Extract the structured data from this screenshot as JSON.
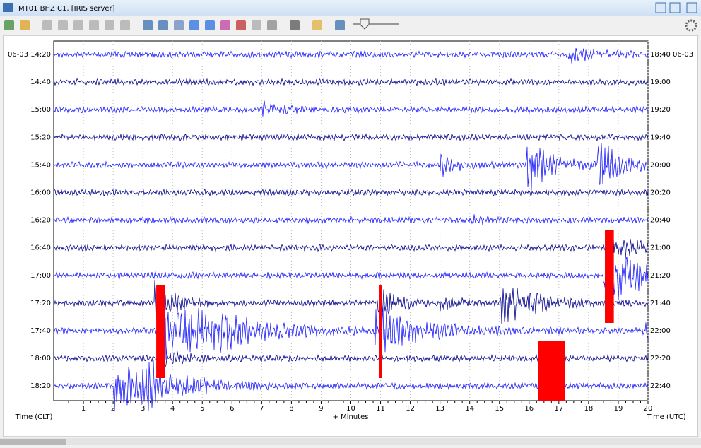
{
  "window": {
    "title": "MT01 BHZ C1, [IRIS server]"
  },
  "plot": {
    "left_labels": [
      "06-03 14:20",
      "14:40",
      "15:00",
      "15:20",
      "15:40",
      "16:00",
      "16:20",
      "16:40",
      "17:00",
      "17:20",
      "17:40",
      "18:00",
      "18:20"
    ],
    "right_labels": [
      "18:40 06-03",
      "19:00",
      "19:20",
      "19:40",
      "20:00",
      "20:20",
      "20:40",
      "21:00",
      "21:20",
      "21:40",
      "22:00",
      "22:20",
      "22:40"
    ],
    "x_ticks": [
      1,
      2,
      3,
      4,
      5,
      6,
      7,
      8,
      9,
      10,
      11,
      12,
      13,
      14,
      15,
      16,
      17,
      18,
      19,
      20
    ],
    "x_axis_label": "+ Minutes",
    "left_axis_label": "Time (CLT)",
    "right_axis_label": "Time (UTC)"
  }
}
